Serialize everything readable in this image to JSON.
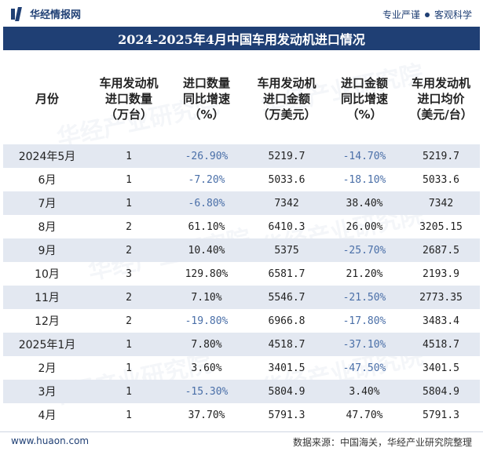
{
  "brand": {
    "logo_text": "华经情报网",
    "slogan_left": "专业严谨",
    "slogan_right": "客观科学"
  },
  "title": "2024-2025年4月中国车用发动机进口情况",
  "watermark": "华经产业研究院",
  "table": {
    "headers": [
      [
        "月份"
      ],
      [
        "车用发动机",
        "进口数量",
        "（万台）"
      ],
      [
        "进口数量",
        "同比增速",
        "（%）"
      ],
      [
        "车用发动机",
        "进口金额",
        "（万美元）"
      ],
      [
        "进口金额",
        "同比增速",
        "（%）"
      ],
      [
        "车用发动机",
        "进口均价",
        "（美元/台）"
      ]
    ],
    "rows": [
      {
        "month": "2024年5月",
        "qty": "1",
        "qty_yoy": "-26.90%",
        "amount": "5219.7",
        "amount_yoy": "-14.70%",
        "price": "5219.7"
      },
      {
        "month": "6月",
        "qty": "1",
        "qty_yoy": "-7.20%",
        "amount": "5033.6",
        "amount_yoy": "-18.10%",
        "price": "5033.6"
      },
      {
        "month": "7月",
        "qty": "1",
        "qty_yoy": "-6.80%",
        "amount": "7342",
        "amount_yoy": "38.40%",
        "price": "7342"
      },
      {
        "month": "8月",
        "qty": "2",
        "qty_yoy": "61.10%",
        "amount": "6410.3",
        "amount_yoy": "26.00%",
        "price": "3205.15"
      },
      {
        "month": "9月",
        "qty": "2",
        "qty_yoy": "10.40%",
        "amount": "5375",
        "amount_yoy": "-25.70%",
        "price": "2687.5"
      },
      {
        "month": "10月",
        "qty": "3",
        "qty_yoy": "129.80%",
        "amount": "6581.7",
        "amount_yoy": "21.20%",
        "price": "2193.9"
      },
      {
        "month": "11月",
        "qty": "2",
        "qty_yoy": "7.10%",
        "amount": "5546.7",
        "amount_yoy": "-21.50%",
        "price": "2773.35"
      },
      {
        "month": "12月",
        "qty": "2",
        "qty_yoy": "-19.80%",
        "amount": "6966.8",
        "amount_yoy": "-17.80%",
        "price": "3483.4"
      },
      {
        "month": "2025年1月",
        "qty": "1",
        "qty_yoy": "7.80%",
        "amount": "4518.7",
        "amount_yoy": "-37.10%",
        "price": "4518.7"
      },
      {
        "month": "2月",
        "qty": "1",
        "qty_yoy": "3.60%",
        "amount": "3401.5",
        "amount_yoy": "-47.50%",
        "price": "3401.5"
      },
      {
        "month": "3月",
        "qty": "1",
        "qty_yoy": "-15.30%",
        "amount": "5804.9",
        "amount_yoy": "3.40%",
        "price": "5804.9"
      },
      {
        "month": "4月",
        "qty": "1",
        "qty_yoy": "37.70%",
        "amount": "5791.3",
        "amount_yoy": "47.70%",
        "price": "5791.3"
      }
    ]
  },
  "footer": {
    "url": "www.huaon.com",
    "source": "数据来源：中国海关，华经产业研究院整理"
  },
  "colors": {
    "brand": "#1f3f74",
    "stripe": "#e3e8f1",
    "negative": "#4a6fa8"
  }
}
